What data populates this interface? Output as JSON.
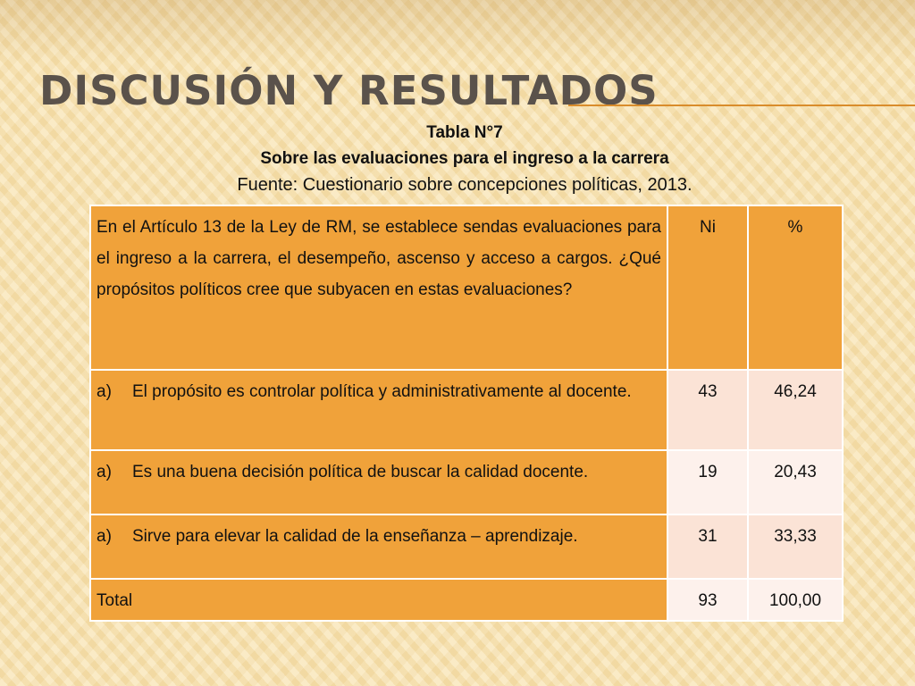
{
  "slide": {
    "title": "Discusión y resultados",
    "caption": {
      "table_number": "Tabla N°7",
      "subject": "Sobre las evaluaciones para el ingreso a la carrera",
      "source": "Fuente: Cuestionario sobre concepciones políticas, 2013."
    }
  },
  "table": {
    "question": "En el Artículo 13 de la Ley de RM, se establece sendas evaluaciones para el ingreso a la carrera, el desempeño, ascenso y acceso a cargos. ¿Qué propósitos políticos cree que subyacen en estas evaluaciones?",
    "col_ni": "Ni",
    "col_pct": "%",
    "rows": [
      {
        "letter": "a)",
        "text": "El propósito es controlar política y administrativamente al docente.",
        "ni": "43",
        "pct": "46,24"
      },
      {
        "letter": "a)",
        "text": "Es una buena decisión política de buscar la calidad docente.",
        "ni": "19",
        "pct": "20,43"
      },
      {
        "letter": "a)",
        "text": "Sirve para elevar la calidad de la enseñanza – aprendizaje.",
        "ni": "31",
        "pct": "33,33"
      }
    ],
    "total": {
      "label": "Total",
      "ni": "93",
      "pct": "100,00"
    }
  },
  "colors": {
    "cell_orange": "#f0a23a",
    "cell_pink": "#fbe3d6",
    "title_gray": "#5a524b",
    "accent_rule": "#d98c2b"
  }
}
